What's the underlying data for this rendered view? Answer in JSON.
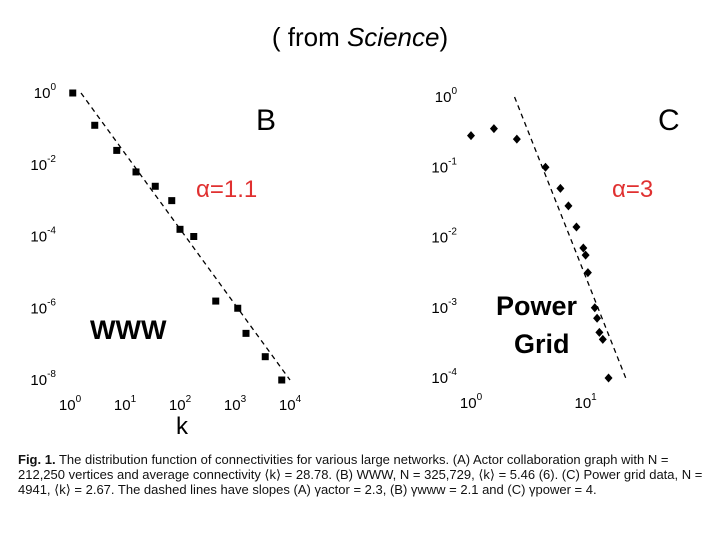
{
  "title": {
    "prefix": "( from ",
    "italic": "Science",
    "suffix": ")"
  },
  "caption": {
    "lead": "Fig. 1.",
    "text": "The distribution function of connectivities for various large networks. (A) Actor collaboration graph with N = 212,250 vertices and average connectivity ⟨k⟩ = 28.78. (B) WWW, N = 325,729, ⟨k⟩ = 5.46 (6). (C) Power grid data, N = 4941, ⟨k⟩ = 2.67. The dashed lines have slopes (A) γactor = 2.3, (B) γwww = 2.1 and (C) γpower = 4."
  },
  "chart_data": [
    {
      "type": "scatter",
      "panel": "B",
      "title": "",
      "annotation": "α=1.1",
      "network_label": "WWW",
      "xlabel": "k",
      "ylabel": "",
      "xscale": "log10",
      "yscale": "log10",
      "xlim_log": [
        0,
        4
      ],
      "ylim_log": [
        -8,
        0
      ],
      "x_ticks": [
        "10^0",
        "10^1",
        "10^2",
        "10^3",
        "10^4"
      ],
      "y_ticks": [
        "10^0",
        "10^-2",
        "10^-4",
        "10^-6",
        "10^-8"
      ],
      "points_log": [
        [
          0.05,
          0.0
        ],
        [
          0.45,
          -0.9
        ],
        [
          0.85,
          -1.6
        ],
        [
          1.2,
          -2.2
        ],
        [
          1.55,
          -2.6
        ],
        [
          1.85,
          -3.0
        ],
        [
          2.0,
          -3.8
        ],
        [
          2.25,
          -4.0
        ],
        [
          2.65,
          -5.8
        ],
        [
          3.05,
          -6.0
        ],
        [
          3.2,
          -6.7
        ],
        [
          3.55,
          -7.35
        ],
        [
          3.85,
          -8.0
        ]
      ],
      "fit_line": {
        "slope": -2.1,
        "from_log": [
          0.2,
          0
        ],
        "to_log": [
          4.0,
          -8.0
        ]
      }
    },
    {
      "type": "scatter",
      "panel": "C",
      "title": "",
      "annotation": "α=3",
      "network_label_lines": [
        "Power",
        "Grid"
      ],
      "xlabel": "",
      "ylabel": "",
      "xscale": "log10",
      "yscale": "log10",
      "xlim_log": [
        0,
        1.3
      ],
      "ylim_log": [
        -4,
        0
      ],
      "x_ticks": [
        "10^0",
        "10^1"
      ],
      "y_ticks": [
        "10^0",
        "10^-1",
        "10^-2",
        "10^-3",
        "10^-4"
      ],
      "points_log": [
        [
          0.0,
          -0.55
        ],
        [
          0.2,
          -0.45
        ],
        [
          0.4,
          -0.6
        ],
        [
          0.65,
          -1.0
        ],
        [
          0.78,
          -1.3
        ],
        [
          0.85,
          -1.55
        ],
        [
          0.92,
          -1.85
        ],
        [
          0.98,
          -2.15
        ],
        [
          1.0,
          -2.25
        ],
        [
          1.02,
          -2.5
        ],
        [
          1.08,
          -3.0
        ],
        [
          1.1,
          -3.15
        ],
        [
          1.12,
          -3.35
        ],
        [
          1.15,
          -3.45
        ],
        [
          1.2,
          -4.0
        ]
      ],
      "fit_line": {
        "slope": -4.0,
        "from_log": [
          0.38,
          0
        ],
        "to_log": [
          1.35,
          -4.0
        ]
      }
    }
  ]
}
